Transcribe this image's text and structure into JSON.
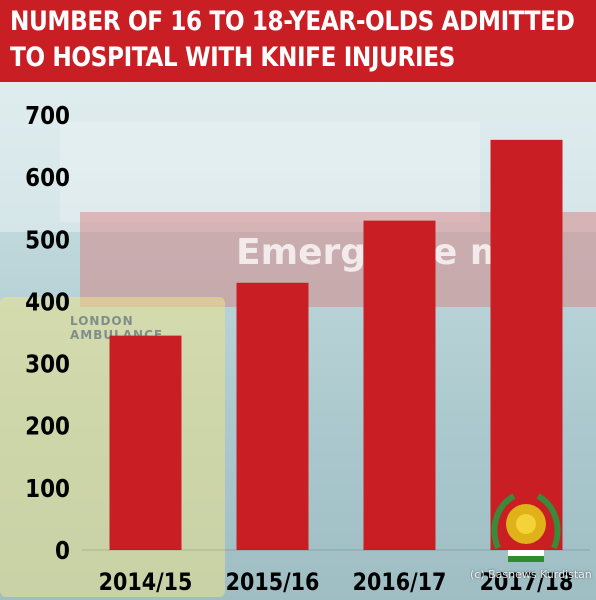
{
  "title_lines": [
    "NUMBER OF 16 TO 18-YEAR-OLDS ADMITTED",
    "TO HOSPITAL WITH KNIFE INJURIES"
  ],
  "colors": {
    "header": "#c81e24",
    "bar": "#c81e24",
    "text": "#ffffff",
    "axis_text": "#000000"
  },
  "background": {
    "sign_text": "Emerge     De     me",
    "ambulance_text": "LONDON\nAMBULANCE"
  },
  "watermark": "(c) Basnews Kurdistan",
  "chart_data": {
    "type": "bar",
    "title": "NUMBER OF 16 TO 18-YEAR-OLDS ADMITTED TO HOSPITAL WITH KNIFE INJURIES",
    "xlabel": "",
    "ylabel": "",
    "categories": [
      "2014/15",
      "2015/16",
      "2016/17",
      "2017/18"
    ],
    "values": [
      345,
      430,
      530,
      660
    ],
    "ylim": [
      0,
      700
    ],
    "yticks": [
      0,
      100,
      200,
      300,
      400,
      500,
      600,
      700
    ],
    "grid": false,
    "legend": "none"
  }
}
